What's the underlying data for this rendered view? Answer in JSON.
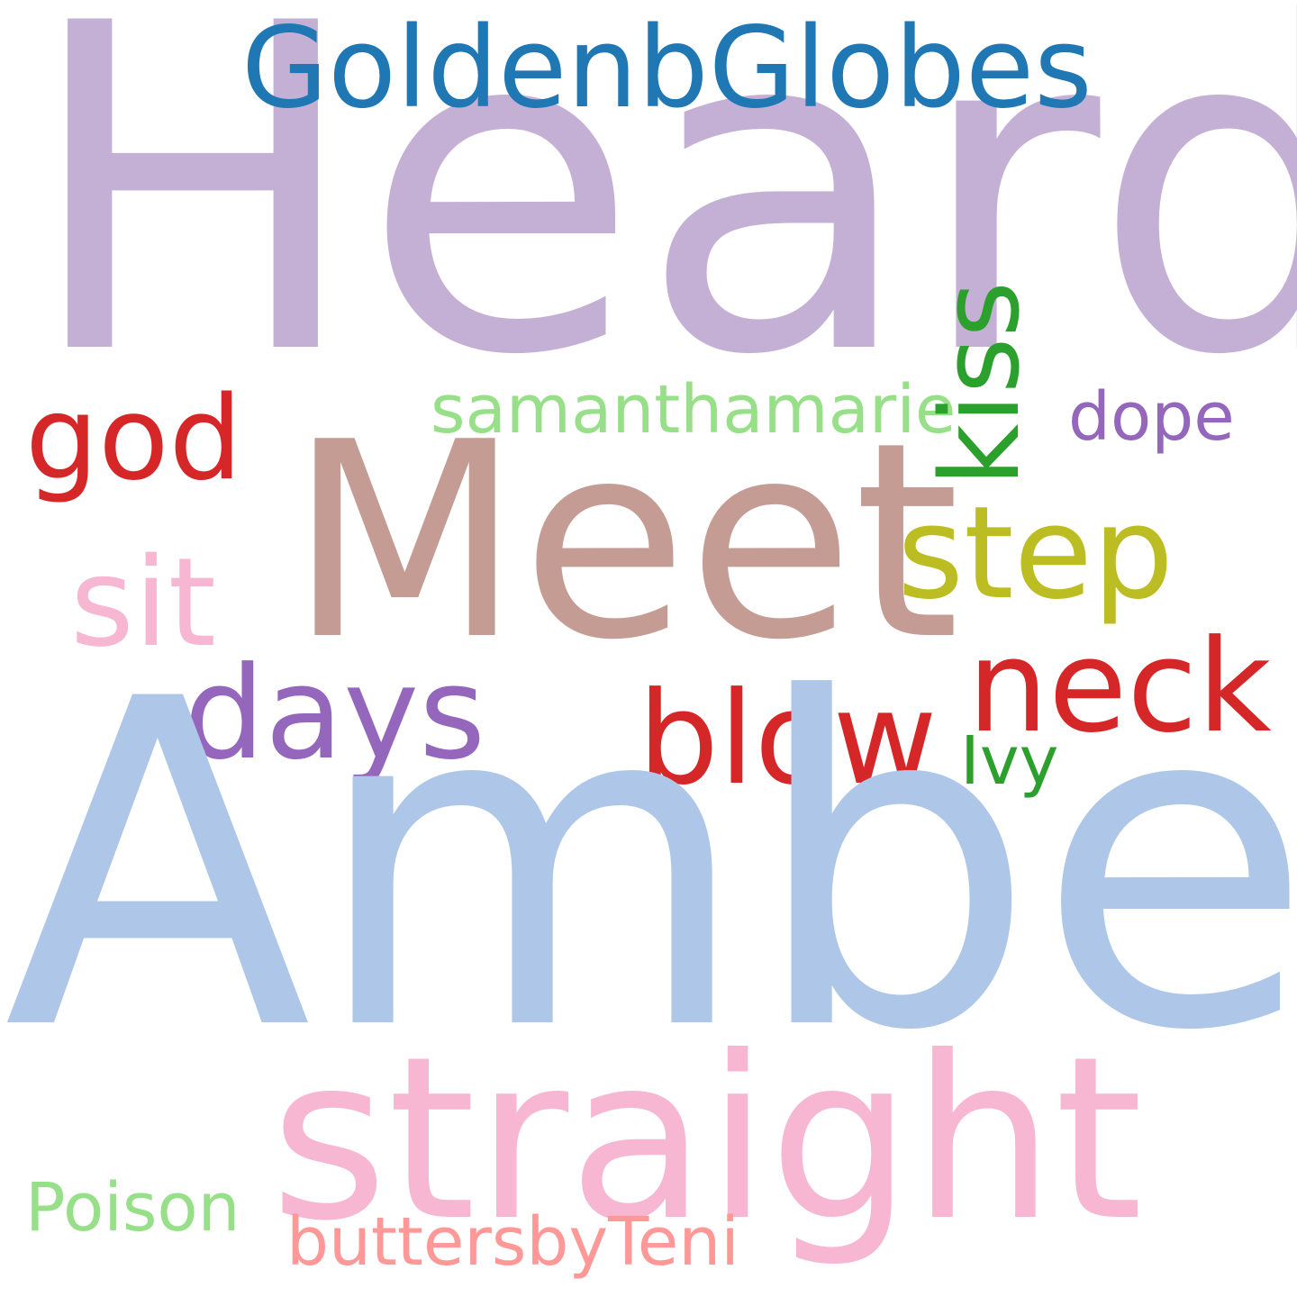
{
  "words": [
    {
      "text": "Heard",
      "color": "#c5b0d5"
    },
    {
      "text": "GoldenbGlobes",
      "color": "#1f77b4"
    },
    {
      "text": "god",
      "color": "#d62728"
    },
    {
      "text": "samanthamarie",
      "color": "#98df8a"
    },
    {
      "text": "kiss",
      "color": "#2ca02c"
    },
    {
      "text": "dope",
      "color": "#9467bd"
    },
    {
      "text": "Meet",
      "color": "#c49c94"
    },
    {
      "text": "step",
      "color": "#bcbd22"
    },
    {
      "text": "sit",
      "color": "#f7b6d2"
    },
    {
      "text": "days",
      "color": "#9467bd"
    },
    {
      "text": "blow",
      "color": "#d62728"
    },
    {
      "text": "neck",
      "color": "#d62728"
    },
    {
      "text": "Ivy",
      "color": "#2ca02c"
    },
    {
      "text": "Amber",
      "color": "#aec7e8"
    },
    {
      "text": "straight",
      "color": "#f7b6d2"
    },
    {
      "text": "Poison",
      "color": "#98df8a"
    },
    {
      "text": "buttersbyTeni",
      "color": "#ff9896"
    }
  ]
}
